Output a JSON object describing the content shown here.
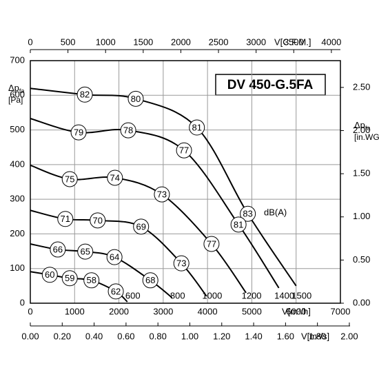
{
  "chart_data": {
    "type": "line",
    "title": "DV 450-G.5FA",
    "y_label": {
      "symbol": "Δp",
      "sub": "fa",
      "unit": "[Pa]"
    },
    "y2_label": {
      "symbol": "Δp",
      "sub": "fa",
      "unit": "[in.WG]"
    },
    "x_label": "V[m³/h]",
    "x2_label": "V[C.F.M.]",
    "x3_label": "V[m³/s]",
    "annotation": "dB(A)",
    "xlim": [
      0,
      7000
    ],
    "xticks": [
      0,
      1000,
      2000,
      3000,
      4000,
      5000,
      6000,
      7000
    ],
    "x2lim": [
      0,
      4120
    ],
    "x2ticks": [
      0,
      500,
      1000,
      1500,
      2000,
      2500,
      3000,
      3500,
      4000
    ],
    "x3lim": [
      0,
      1.944
    ],
    "x3ticks": [
      {
        "value": 0,
        "label": "0.00"
      },
      {
        "value": 0.2,
        "label": "0.20"
      },
      {
        "value": 0.4,
        "label": "0.40"
      },
      {
        "value": 0.6,
        "label": "0.60"
      },
      {
        "value": 0.8,
        "label": "0.80"
      },
      {
        "value": 1,
        "label": "1.00"
      },
      {
        "value": 1.2,
        "label": "1.20"
      },
      {
        "value": 1.4,
        "label": "1.40"
      },
      {
        "value": 1.6,
        "label": "1.60"
      },
      {
        "value": 1.8,
        "label": "1.80"
      },
      {
        "value": 2,
        "label": "2.00"
      }
    ],
    "ylim": [
      0,
      700
    ],
    "yticks": [
      0,
      100,
      200,
      300,
      400,
      500,
      600,
      700
    ],
    "y2lim": [
      0,
      2.81
    ],
    "y2ticks": [
      {
        "value": 0,
        "label": "0.00"
      },
      {
        "value": 0.5,
        "label": "0.50"
      },
      {
        "value": 1,
        "label": "1.00"
      },
      {
        "value": 1.5,
        "label": "1.50"
      },
      {
        "value": 2,
        "label": "2.00"
      },
      {
        "value": 2.5,
        "label": "2.50"
      }
    ],
    "grid": true,
    "series": [
      {
        "name": "1500",
        "color": "#000000",
        "x": [
          0,
          1230,
          2380,
          3760,
          4910,
          6000
        ],
        "values": [
          620,
          602,
          590,
          507,
          258,
          50
        ],
        "dba": [
          null,
          82,
          80,
          81,
          83,
          null
        ]
      },
      {
        "name": "1400",
        "color": "#000000",
        "x": [
          0,
          1090,
          2210,
          3470,
          4700,
          5610
        ],
        "values": [
          533,
          493,
          499,
          441,
          227,
          44
        ],
        "dba": [
          null,
          79,
          78,
          77,
          81,
          null
        ]
      },
      {
        "name": "1200",
        "color": "#000000",
        "x": [
          0,
          890,
          1910,
          2970,
          4090,
          4870
        ],
        "values": [
          398,
          358,
          362,
          314,
          171,
          30
        ],
        "dba": [
          null,
          75,
          74,
          73,
          77,
          null
        ]
      },
      {
        "name": "1000",
        "color": "#000000",
        "x": [
          0,
          790,
          1520,
          2500,
          3410,
          3980
        ],
        "values": [
          268,
          243,
          239,
          221,
          115,
          20
        ],
        "dba": [
          null,
          71,
          70,
          69,
          73,
          null
        ]
      },
      {
        "name": "800",
        "color": "#000000",
        "x": [
          0,
          620,
          1240,
          1900,
          2710,
          3200
        ],
        "values": [
          171,
          155,
          149,
          133,
          66,
          16
        ],
        "dba": [
          null,
          66,
          65,
          64,
          68,
          null
        ]
      },
      {
        "name": "600",
        "color": "#000000",
        "x": [
          0,
          440,
          890,
          1380,
          1930,
          2190
        ],
        "values": [
          91,
          82,
          72,
          66,
          34,
          4
        ],
        "dba": [
          null,
          60,
          59,
          58,
          62,
          null
        ]
      }
    ]
  }
}
